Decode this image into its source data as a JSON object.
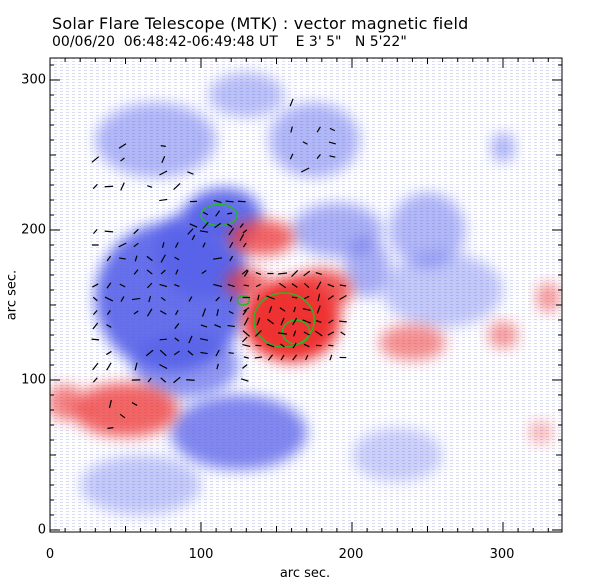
{
  "figure": {
    "title": "Solar Flare Telescope (MTK) : vector magnetic field",
    "subtitle": "00/06/20  06:48:42-06:49:48 UT    E 3' 5\"   N 5'22\"",
    "xlabel": "arc sec.",
    "ylabel": "arc sec.",
    "xticks": [
      "0",
      "100",
      "200",
      "300"
    ],
    "yticks": [
      "0",
      "100",
      "200",
      "300"
    ]
  },
  "colors": {
    "positive_field": "#ee3333",
    "negative_field": "#5560e8",
    "contour": "#22bb22",
    "vectors": "#000000"
  },
  "chart_data": {
    "type": "heatmap",
    "title": "Solar Flare Telescope (MTK) : vector magnetic field",
    "subtitle": "00/06/20  06:48:42-06:49:48 UT    E 3' 5\"   N 5'22\"",
    "xlabel": "arc sec.",
    "ylabel": "arc sec.",
    "xlim": [
      0,
      340
    ],
    "ylim": [
      0,
      315
    ],
    "grid": false,
    "positive_regions": [
      {
        "x": 160,
        "y": 140,
        "rx": 32,
        "ry": 28,
        "strength": 1.0
      },
      {
        "x": 180,
        "y": 160,
        "rx": 20,
        "ry": 14,
        "strength": 0.8
      },
      {
        "x": 140,
        "y": 195,
        "rx": 22,
        "ry": 12,
        "strength": 0.75
      },
      {
        "x": 130,
        "y": 165,
        "rx": 14,
        "ry": 10,
        "strength": 0.7
      },
      {
        "x": 240,
        "y": 125,
        "rx": 22,
        "ry": 12,
        "strength": 0.55
      },
      {
        "x": 300,
        "y": 130,
        "rx": 10,
        "ry": 9,
        "strength": 0.5
      },
      {
        "x": 50,
        "y": 80,
        "rx": 35,
        "ry": 18,
        "strength": 0.75
      },
      {
        "x": 10,
        "y": 85,
        "rx": 12,
        "ry": 12,
        "strength": 0.6
      },
      {
        "x": 330,
        "y": 155,
        "rx": 8,
        "ry": 10,
        "strength": 0.5
      },
      {
        "x": 325,
        "y": 65,
        "rx": 8,
        "ry": 8,
        "strength": 0.35
      }
    ],
    "negative_regions": [
      {
        "x": 80,
        "y": 155,
        "rx": 50,
        "ry": 50,
        "strength": 0.9
      },
      {
        "x": 115,
        "y": 210,
        "rx": 25,
        "ry": 18,
        "strength": 0.9
      },
      {
        "x": 100,
        "y": 185,
        "rx": 30,
        "ry": 30,
        "strength": 0.8
      },
      {
        "x": 90,
        "y": 110,
        "rx": 35,
        "ry": 22,
        "strength": 0.65
      },
      {
        "x": 125,
        "y": 65,
        "rx": 45,
        "ry": 25,
        "strength": 0.75
      },
      {
        "x": 190,
        "y": 200,
        "rx": 30,
        "ry": 18,
        "strength": 0.5
      },
      {
        "x": 250,
        "y": 200,
        "rx": 25,
        "ry": 25,
        "strength": 0.45
      },
      {
        "x": 260,
        "y": 160,
        "rx": 40,
        "ry": 25,
        "strength": 0.35
      },
      {
        "x": 70,
        "y": 260,
        "rx": 40,
        "ry": 25,
        "strength": 0.45
      },
      {
        "x": 175,
        "y": 260,
        "rx": 30,
        "ry": 25,
        "strength": 0.45
      },
      {
        "x": 130,
        "y": 290,
        "rx": 25,
        "ry": 15,
        "strength": 0.4
      },
      {
        "x": 210,
        "y": 175,
        "rx": 15,
        "ry": 20,
        "strength": 0.5
      },
      {
        "x": 300,
        "y": 255,
        "rx": 8,
        "ry": 10,
        "strength": 0.45
      },
      {
        "x": 60,
        "y": 30,
        "rx": 40,
        "ry": 20,
        "strength": 0.35
      },
      {
        "x": 230,
        "y": 50,
        "rx": 30,
        "ry": 18,
        "strength": 0.3
      }
    ],
    "contours": [
      {
        "x": 155,
        "y": 140,
        "rx": 20,
        "ry": 18
      },
      {
        "x": 163,
        "y": 132,
        "rx": 9,
        "ry": 8
      },
      {
        "x": 112,
        "y": 210,
        "rx": 12,
        "ry": 7
      },
      {
        "x": 128,
        "y": 153,
        "rx": 4,
        "ry": 3
      }
    ],
    "vector_clusters": [
      {
        "x0": 30,
        "x1": 130,
        "y0": 100,
        "y1": 200,
        "step": 9,
        "density": 0.55
      },
      {
        "x0": 130,
        "x1": 200,
        "y0": 115,
        "y1": 175,
        "step": 8,
        "density": 0.8
      },
      {
        "x0": 95,
        "x1": 130,
        "y0": 195,
        "y1": 225,
        "step": 8,
        "density": 0.7
      },
      {
        "x0": 160,
        "x1": 190,
        "y0": 240,
        "y1": 285,
        "step": 9,
        "density": 0.5
      },
      {
        "x0": 30,
        "x1": 95,
        "y0": 220,
        "y1": 260,
        "step": 9,
        "density": 0.35
      },
      {
        "x0": 40,
        "x1": 60,
        "y0": 60,
        "y1": 85,
        "step": 8,
        "density": 0.6
      }
    ]
  }
}
